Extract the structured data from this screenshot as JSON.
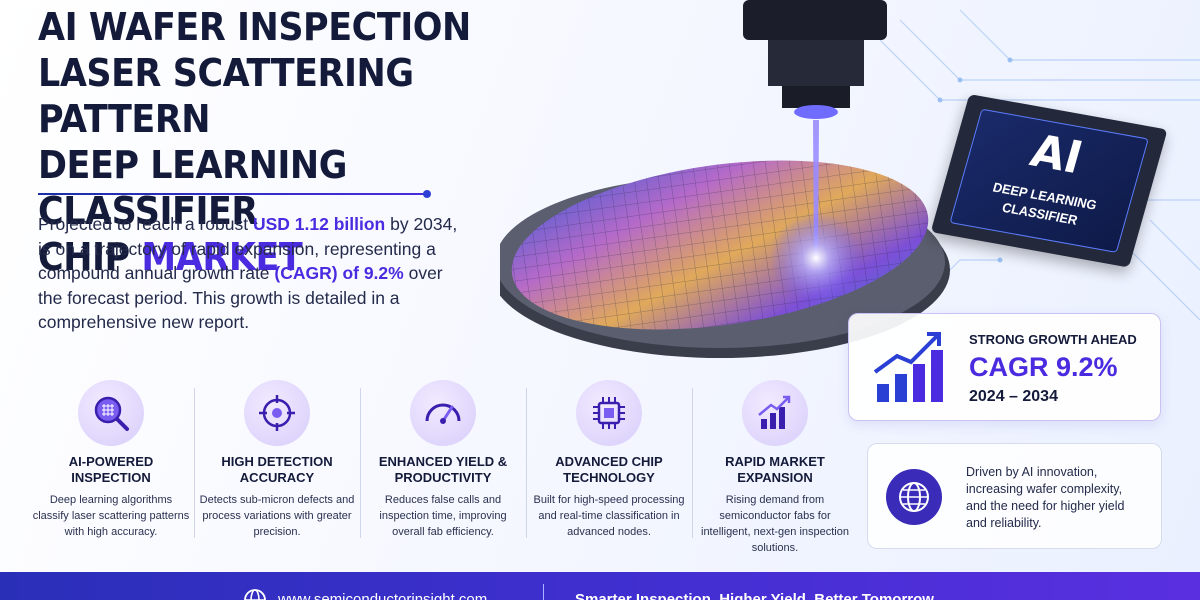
{
  "title": {
    "line1": "AI WAFER INSPECTION",
    "line2": "LASER SCATTERING PATTERN",
    "line3": "DEEP LEARNING CLASSIFIER",
    "line4_plain": "CHIP ",
    "line4_accent": "MARKET"
  },
  "intro": {
    "p1": "Projected to reach a robust ",
    "value": "USD 1.12 billion",
    "p2": " by ",
    "year": "2034",
    "p3": ", is on a trajectory of rapid expansion, representing a compound annual growth rate ",
    "cagr": "(CAGR) of 9.2%",
    "p4": " over the forecast period. This growth is detailed in a comprehensive new report."
  },
  "chip": {
    "big": "AI",
    "line1": "DEEP LEARNING",
    "line2": "CLASSIFIER"
  },
  "features": [
    {
      "icon": "magnifier-grid-icon",
      "title": "AI-POWERED INSPECTION",
      "desc": "Deep learning algorithms classify laser scattering patterns with high accuracy."
    },
    {
      "icon": "crosshair-icon",
      "title": "HIGH DETECTION ACCURACY",
      "desc": "Detects sub-micron defects and process variations with greater precision."
    },
    {
      "icon": "gauge-icon",
      "title": "ENHANCED YIELD & PRODUCTIVITY",
      "desc": "Reduces false calls and inspection time, improving overall fab efficiency."
    },
    {
      "icon": "chip-icon",
      "title": "ADVANCED CHIP TECHNOLOGY",
      "desc": "Built for high-speed processing and real-time classification in advanced nodes."
    },
    {
      "icon": "bar-growth-icon",
      "title": "RAPID MARKET EXPANSION",
      "desc": "Rising demand from semiconductor fabs for intelligent, next-gen inspection solutions."
    }
  ],
  "growth": {
    "label": "STRONG GROWTH AHEAD",
    "cagr": "CAGR 9.2%",
    "years": "2024 – 2034"
  },
  "driver": {
    "text": "Driven by AI innovation, increasing wafer complexity, and the need for higher yield and reliability."
  },
  "footer": {
    "url": "www.semiconductorinsight.com",
    "tagline": "Smarter Inspection. Higher Yield. Better Tomorrow."
  },
  "colors": {
    "accent": "#4b2be0",
    "dark": "#141a3a",
    "footer": "#3f2fcf"
  }
}
